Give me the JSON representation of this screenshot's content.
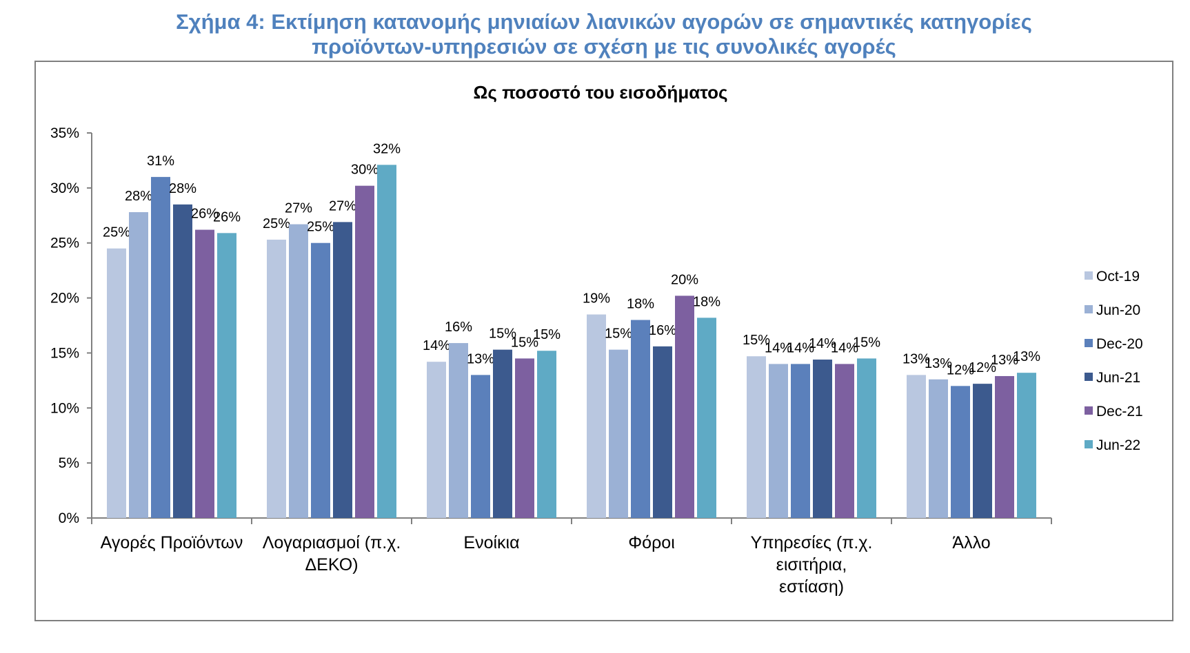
{
  "figure_title": [
    "Σχήμα 4: Εκτίμηση κατανομής μηνιαίων λιανικών αγορών σε σημαντικές κατηγορίες",
    "προϊόντων-υπηρεσιών σε σχέση με τις συνολικές αγορές"
  ],
  "chart_data": {
    "type": "bar",
    "title": "Ως ποσοστό του εισοδήματος",
    "xlabel": "",
    "ylabel": "",
    "ylim": [
      0,
      35
    ],
    "ytick_values": [
      0,
      5,
      10,
      15,
      20,
      25,
      30,
      35
    ],
    "ytick_labels": [
      "0%",
      "5%",
      "10%",
      "15%",
      "20%",
      "25%",
      "30%",
      "35%"
    ],
    "categories": [
      [
        "Αγορές Προϊόντων"
      ],
      [
        "Λογαριασμοί (π.χ.",
        "ΔΕΚΟ)"
      ],
      [
        "Ενοίκια"
      ],
      [
        "Φόροι"
      ],
      [
        "Υπηρεσίες (π.χ.",
        "εισιτήρια,",
        "εστίαση)"
      ],
      [
        "Άλλο"
      ]
    ],
    "legend_position": "right",
    "grid": false,
    "series": [
      {
        "name": "Oct-19",
        "color": "#b9c7e0",
        "values": [
          24.5,
          25.3,
          14.2,
          18.5,
          14.7,
          13.0
        ],
        "labels": [
          "25%",
          "25%",
          "14%",
          "19%",
          "15%",
          "13%"
        ]
      },
      {
        "name": "Jun-20",
        "color": "#9bb1d5",
        "values": [
          27.8,
          26.7,
          15.9,
          15.3,
          14.0,
          12.6
        ],
        "labels": [
          "28%",
          "27%",
          "16%",
          "15%",
          "14%",
          "13%"
        ]
      },
      {
        "name": "Dec-20",
        "color": "#5b80bb",
        "values": [
          31.0,
          25.0,
          13.0,
          18.0,
          14.0,
          12.0
        ],
        "labels": [
          "31%",
          "25%",
          "13%",
          "18%",
          "14%",
          "12%"
        ]
      },
      {
        "name": "Jun-21",
        "color": "#3c5a8e",
        "values": [
          28.5,
          26.9,
          15.3,
          15.6,
          14.4,
          12.2
        ],
        "labels": [
          "28%",
          "27%",
          "15%",
          "16%",
          "14%",
          "12%"
        ]
      },
      {
        "name": "Dec-21",
        "color": "#7d60a0",
        "values": [
          26.2,
          30.2,
          14.5,
          20.2,
          14.0,
          12.9
        ],
        "labels": [
          "26%",
          "30%",
          "15%",
          "20%",
          "14%",
          "13%"
        ]
      },
      {
        "name": "Jun-22",
        "color": "#5faac5",
        "values": [
          25.9,
          32.1,
          15.2,
          18.2,
          14.5,
          13.2
        ],
        "labels": [
          "26%",
          "32%",
          "15%",
          "18%",
          "15%",
          "13%"
        ]
      }
    ]
  }
}
